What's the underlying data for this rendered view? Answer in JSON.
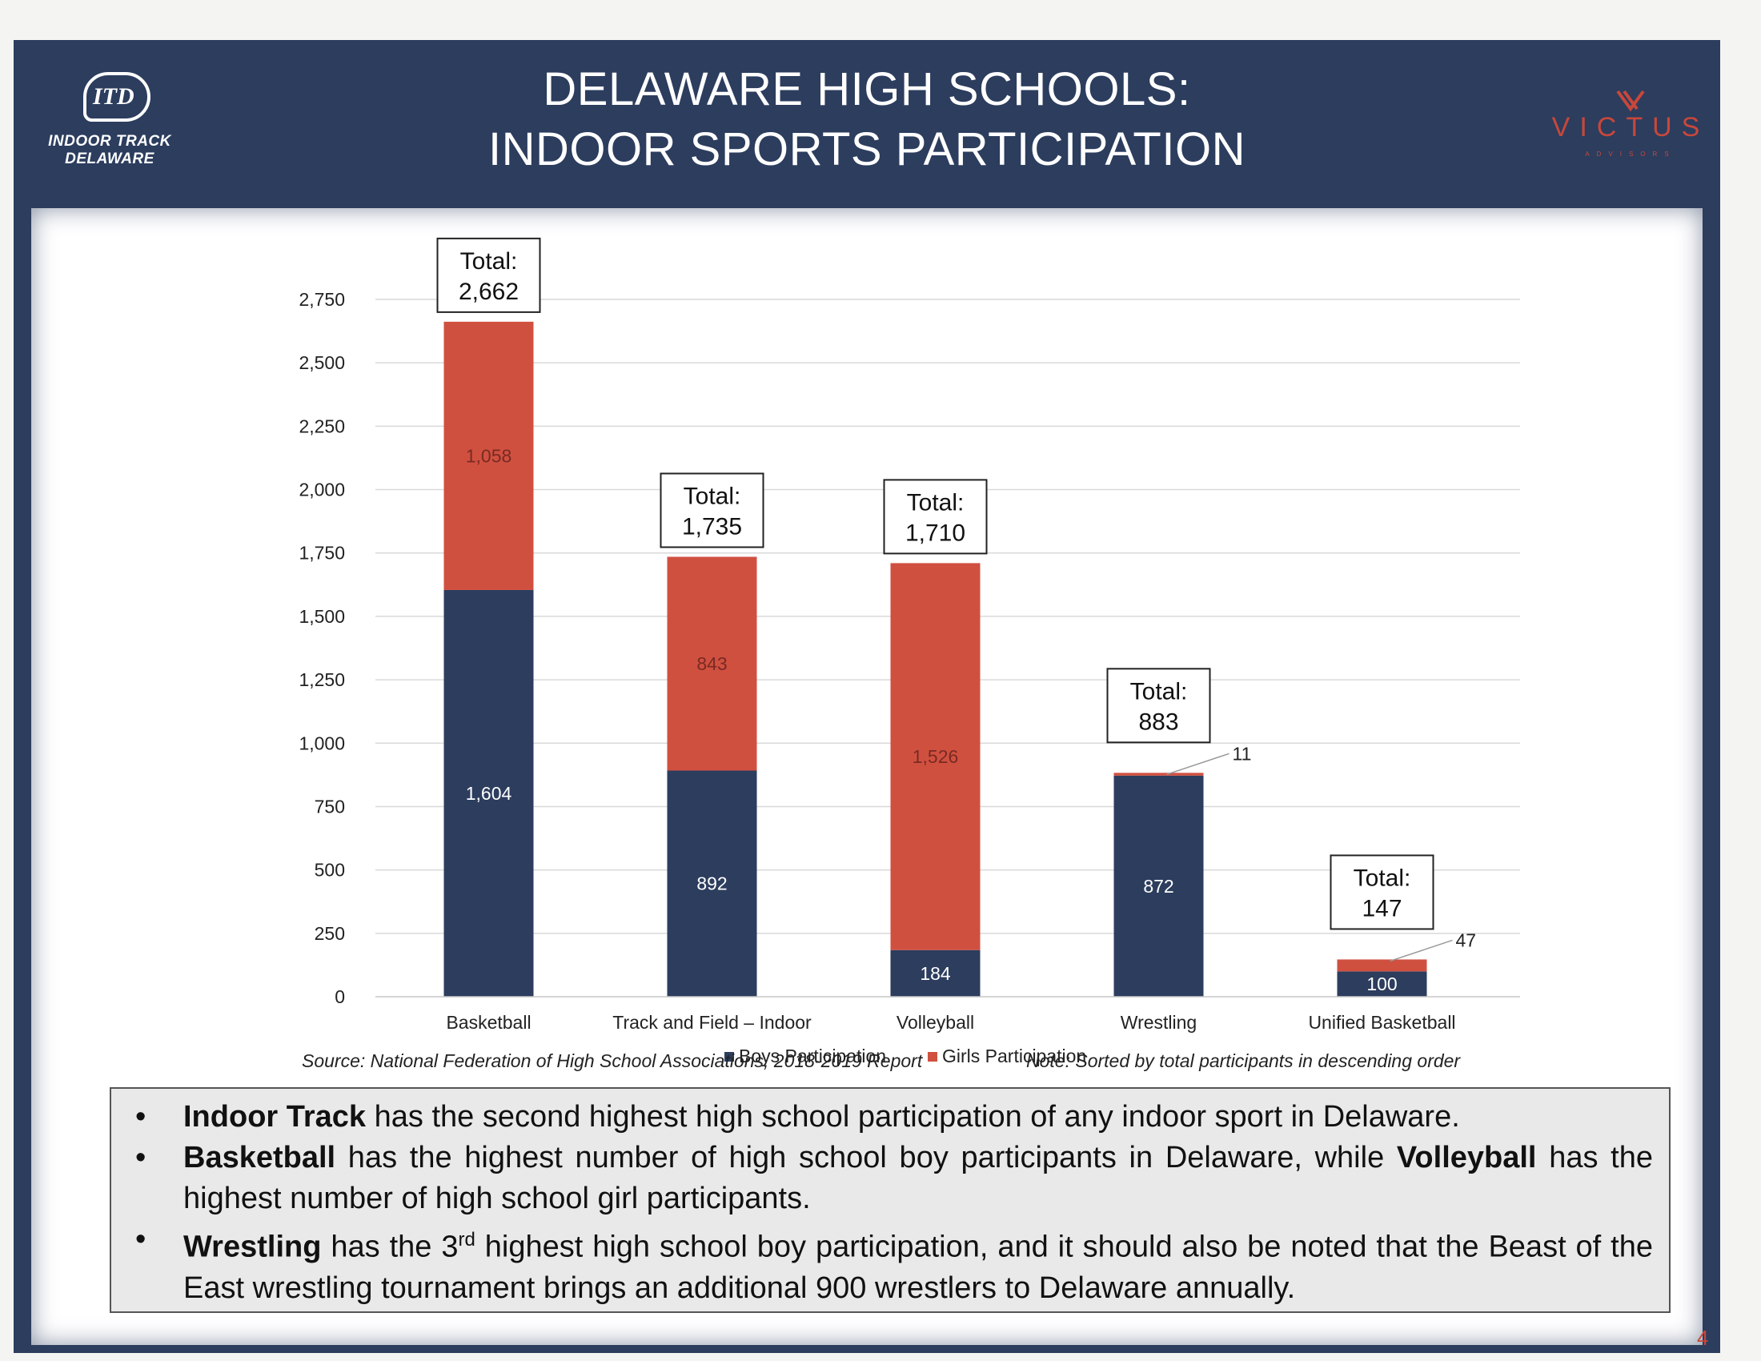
{
  "header": {
    "title_line1": "DELAWARE HIGH SCHOOLS:",
    "title_line2": "INDOOR SPORTS PARTICIPATION",
    "left_logo": {
      "mark": "ITD",
      "line1": "INDOOR TRACK",
      "line2": "DELAWARE"
    },
    "right_logo": {
      "brand": "VICTUS",
      "sub": "ADVISORS"
    }
  },
  "chart_data": {
    "type": "bar",
    "stacked": true,
    "categories": [
      "Basketball",
      "Track and Field – Indoor",
      "Volleyball",
      "Wrestling",
      "Unified Basketball"
    ],
    "series": [
      {
        "name": "Boys Participation",
        "color": "#2c3d5e",
        "values": [
          1604,
          892,
          184,
          872,
          100
        ]
      },
      {
        "name": "Girls Participation",
        "color": "#d05040",
        "values": [
          1058,
          843,
          1526,
          11,
          47
        ]
      }
    ],
    "totals": [
      2662,
      1735,
      1710,
      883,
      147
    ],
    "total_label": "Total:",
    "data_labels": {
      "boys": [
        "1,604",
        "892",
        "184",
        "872",
        "100"
      ],
      "girls": [
        "1,058",
        "843",
        "1,526",
        "11",
        "47"
      ],
      "totals": [
        "2,662",
        "1,735",
        "1,710",
        "883",
        "147"
      ]
    },
    "ylim": [
      0,
      2750
    ],
    "yticks": [
      0,
      250,
      500,
      750,
      1000,
      1250,
      1500,
      1750,
      2000,
      2250,
      2500,
      2750
    ],
    "ytick_labels": [
      "0",
      "250",
      "500",
      "750",
      "1,000",
      "1,250",
      "1,500",
      "1,750",
      "2,000",
      "2,250",
      "2,500",
      "2,750"
    ],
    "grid": true,
    "legend": "bottom",
    "title": "",
    "xlabel": "",
    "ylabel": ""
  },
  "footer": {
    "source": "Source: National Federation of High School Associations, 2018-2019 Report",
    "note": "Note: Sorted by total participants in descending order"
  },
  "summary": {
    "b1_bold": "Indoor Track",
    "b1_rest": " has the second highest high school participation of any indoor sport in Delaware.",
    "b2_bold1": "Basketball",
    "b2_mid": " has the highest number of high school boy participants in Delaware, while ",
    "b2_bold2": "Volleyball",
    "b2_rest": " has the highest number of high school girl participants.",
    "b3_bold": "Wrestling",
    "b3_pre": " has the 3",
    "b3_sup": "rd",
    "b3_rest": " highest high school boy participation, and it should also be noted that the Beast of the East wrestling tournament brings an additional 900 wrestlers to Delaware annually."
  },
  "page_number": "4"
}
